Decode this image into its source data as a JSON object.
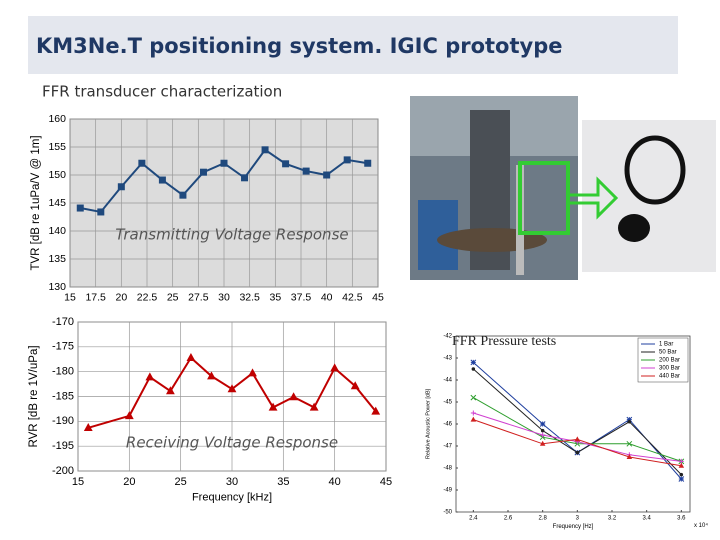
{
  "title": "KM3Ne.T positioning system. IGIC prototype",
  "subtitle": "FFR transducer characterization",
  "chart_data": [
    {
      "type": "line",
      "annotation": "Transmitting Voltage Response",
      "ylabel": "TVR [dB re 1uPa/V @ 1m]",
      "x": [
        16,
        18,
        20,
        22,
        24,
        26,
        28,
        30,
        32,
        34,
        36,
        38,
        40,
        42,
        44
      ],
      "series": [
        {
          "color": "#1f497d",
          "marker": "square",
          "values": [
            144.1,
            143.4,
            147.9,
            152.1,
            149.1,
            146.4,
            150.5,
            152.1,
            149.5,
            154.5,
            152.0,
            150.7,
            150.0,
            152.7,
            152.1
          ]
        }
      ],
      "xlim": [
        15,
        45
      ],
      "xticks": [
        15,
        17.5,
        20,
        22.5,
        25,
        27.5,
        30,
        32.5,
        35,
        37.5,
        40,
        42.5,
        45
      ],
      "ylim": [
        130,
        160
      ],
      "yticks": [
        130,
        135,
        140,
        145,
        150,
        155,
        160
      ],
      "grid": true,
      "background": "#dcdcdc"
    },
    {
      "type": "line",
      "annotation": "Receiving Voltage Response",
      "xlabel": "Frequency [kHz]",
      "ylabel": "RVR [dB re 1V/uPa]",
      "x": [
        16,
        20,
        22,
        24,
        26,
        28,
        30,
        32,
        34,
        36,
        38,
        40,
        42,
        44
      ],
      "series": [
        {
          "color": "#c00000",
          "marker": "triangle",
          "values": [
            -191.3,
            -188.9,
            -181.1,
            -183.9,
            -177.2,
            -180.9,
            -183.5,
            -180.3,
            -187.2,
            -185.1,
            -187.2,
            -179.3,
            -182.9,
            -188.0
          ]
        }
      ],
      "xlim": [
        15,
        45
      ],
      "xticks": [
        15,
        20,
        25,
        30,
        35,
        40,
        45
      ],
      "ylim": [
        -200,
        -170
      ],
      "yticks": [
        -200,
        -195,
        -190,
        -185,
        -180,
        -175,
        -170
      ],
      "grid": true,
      "background": "#ffffff"
    },
    {
      "type": "line",
      "annotation": "FFR Pressure tests",
      "xlabel": "Frequency [Hz]",
      "ylabel": "Relative Acoustic Power [dB]",
      "xscale_label": "x 10⁴",
      "x": [
        2.4,
        2.8,
        3.0,
        3.3,
        3.6
      ],
      "series": [
        {
          "name": "1 Bar",
          "color": "#1f3f9f",
          "marker": "star",
          "values": [
            -43.2,
            -46.0,
            -47.3,
            -45.8,
            -48.5
          ]
        },
        {
          "name": "50 Bar",
          "color": "#222222",
          "marker": "dot",
          "values": [
            -43.5,
            -46.3,
            -47.3,
            -45.9,
            -48.3
          ]
        },
        {
          "name": "200 Bar",
          "color": "#2e9e2e",
          "marker": "cross",
          "values": [
            -44.8,
            -46.6,
            -46.9,
            -46.9,
            -47.7
          ]
        },
        {
          "name": "300 Bar",
          "color": "#d040d0",
          "marker": "plus",
          "values": [
            -45.5,
            -46.5,
            -46.8,
            -47.4,
            -47.7
          ]
        },
        {
          "name": "440 Bar",
          "color": "#d02020",
          "marker": "triangle",
          "values": [
            -45.8,
            -46.9,
            -46.7,
            -47.5,
            -47.9
          ]
        }
      ],
      "xlim": [
        2.3,
        3.65
      ],
      "xticks": [
        2.4,
        2.6,
        2.8,
        3,
        3.2,
        3.4,
        3.6
      ],
      "ylim": [
        -50,
        -42
      ],
      "yticks": [
        -50,
        -49,
        -48,
        -47,
        -46,
        -45,
        -44,
        -43,
        -42
      ],
      "grid": false,
      "background": "#ffffff",
      "legend": "top-right"
    }
  ]
}
